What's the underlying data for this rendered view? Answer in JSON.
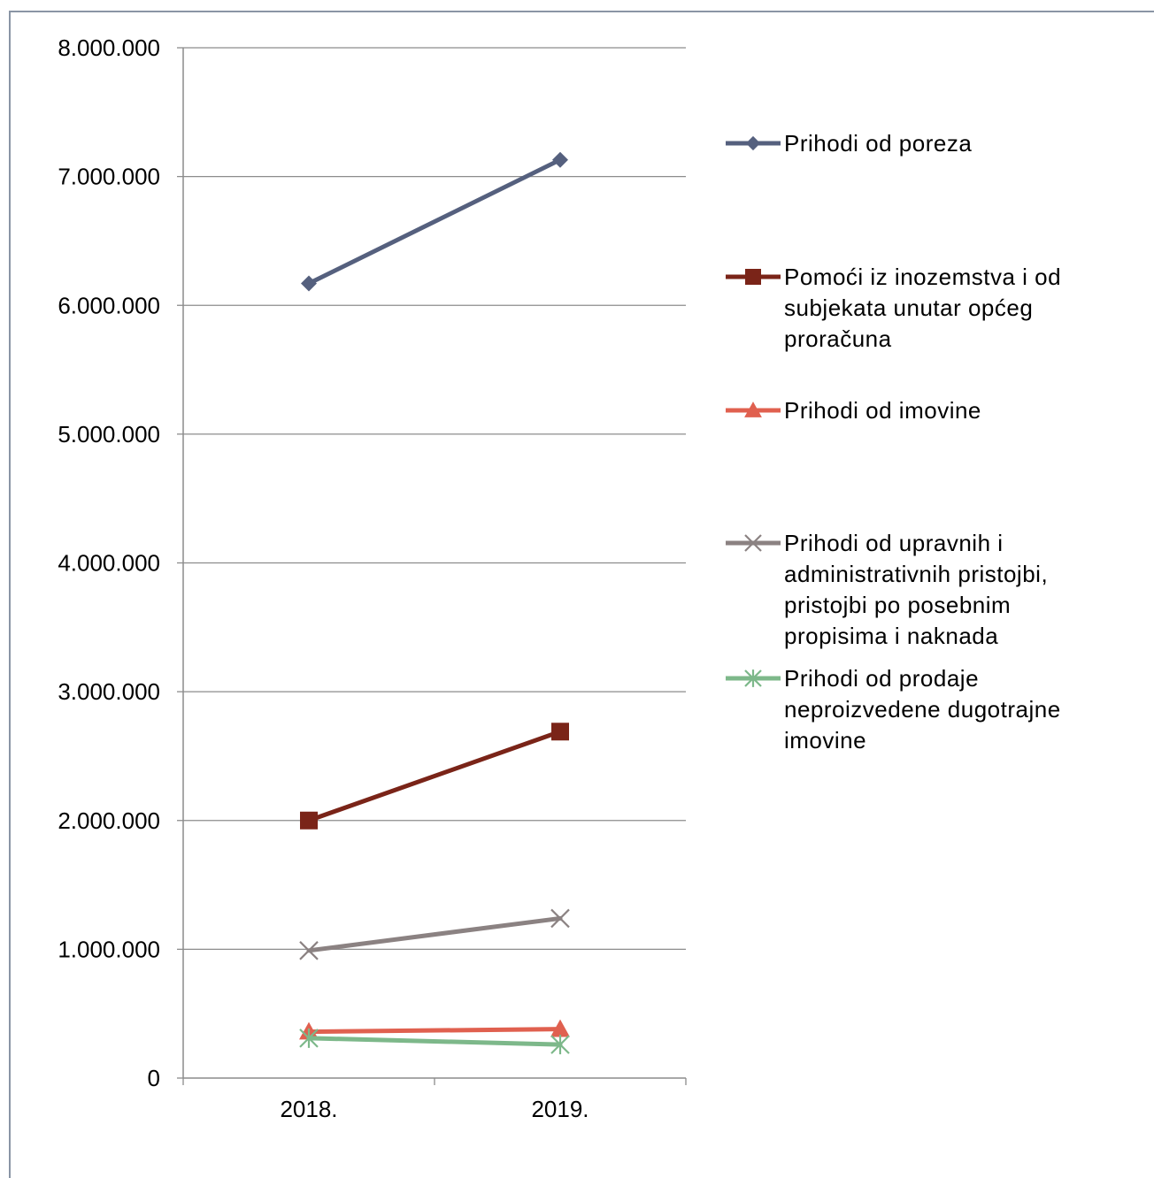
{
  "chart_data": {
    "type": "line",
    "categories": [
      "2018.",
      "2019."
    ],
    "ylim": [
      0,
      8000000
    ],
    "yticks": [
      0,
      1000000,
      2000000,
      3000000,
      4000000,
      5000000,
      6000000,
      7000000,
      8000000
    ],
    "ytick_labels": [
      "0",
      "1.000.000",
      "2.000.000",
      "3.000.000",
      "4.000.000",
      "5.000.000",
      "6.000.000",
      "7.000.000",
      "8.000.000"
    ],
    "grid": true,
    "legend_position": "right",
    "series": [
      {
        "name": "Prihodi od poreza",
        "legend_lines": [
          "Prihodi od poreza"
        ],
        "values": [
          6170000,
          7130000
        ],
        "color": "#55607e",
        "marker": "diamond"
      },
      {
        "name": "Pomoći iz inozemstva i od subjekata unutar općeg proračuna",
        "legend_lines": [
          "Pomoći iz inozemstva i od",
          "subjekata unutar općeg",
          "proračuna"
        ],
        "values": [
          2000000,
          2690000
        ],
        "color": "#7a2418",
        "marker": "square"
      },
      {
        "name": "Prihodi od imovine",
        "legend_lines": [
          "Prihodi od imovine"
        ],
        "values": [
          360000,
          380000
        ],
        "color": "#e0604f",
        "marker": "triangle"
      },
      {
        "name": "Prihodi od upravnih i administrativnih pristojbi, pristojbi po posebnim propisima i naknada",
        "legend_lines": [
          "Prihodi od upravnih i",
          "administrativnih pristojbi,",
          "pristojbi po posebnim",
          "propisima i naknada"
        ],
        "values": [
          990000,
          1240000
        ],
        "color": "#8b8282",
        "marker": "x"
      },
      {
        "name": "Prihodi od prodaje neproizvedene dugotrajne imovine",
        "legend_lines": [
          "Prihodi od prodaje",
          "neproizvedene dugotrajne",
          "imovine"
        ],
        "values": [
          310000,
          260000
        ],
        "color": "#7db88a",
        "marker": "star"
      }
    ]
  }
}
